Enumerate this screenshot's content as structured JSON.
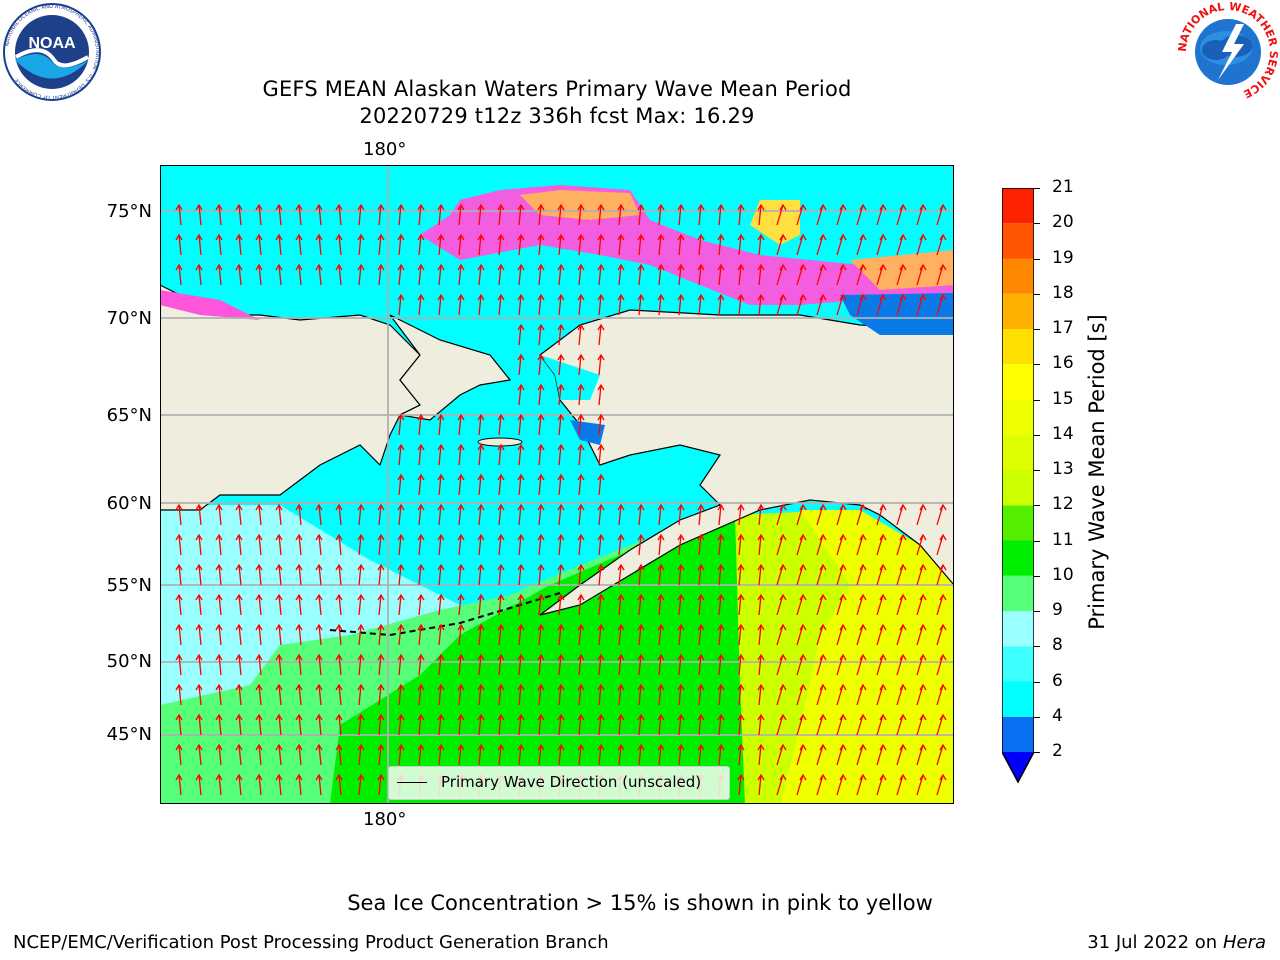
{
  "title": {
    "line1": "GEFS MEAN Alaskan Waters Primary Wave Mean Period",
    "line2": "20220729 t12z 336h fcst   Max: 16.29"
  },
  "map": {
    "lon_label_top": "180°",
    "lon_label_bottom": "180°",
    "lat_labels": [
      "75°N",
      "70°N",
      "65°N",
      "60°N",
      "55°N",
      "50°N",
      "45°N"
    ],
    "ocean_colors": {
      "cyan": "#00FFFF",
      "light_cyan": "#99FFFF",
      "green_light": "#55FF77",
      "green": "#00EE00",
      "yellow_green": "#CCFF00",
      "yellow": "#FFFF00",
      "blue": "#0A7AE8",
      "land": "#EEEDDE",
      "arrow": "#FF0000",
      "ice_pink": "#FF55DD",
      "ice_orange": "#FFB060",
      "ice_yellow": "#FFE040"
    },
    "legend_label": "Primary Wave Direction (unscaled)"
  },
  "colorbar": {
    "label": "Primary Wave Mean Period [s]",
    "ticks": [
      "2",
      "4",
      "6",
      "8",
      "9",
      "10",
      "11",
      "12",
      "13",
      "14",
      "15",
      "16",
      "17",
      "18",
      "19",
      "20",
      "21"
    ],
    "colors": [
      "#0A6FF0",
      "#00FFFF",
      "#3DFFFF",
      "#99FFFF",
      "#55FF77",
      "#00EE00",
      "#55EE00",
      "#CCFF00",
      "#DDFF00",
      "#EEFF00",
      "#FFFF00",
      "#FFE000",
      "#FFB000",
      "#FF8800",
      "#FF5500",
      "#FF2200"
    ],
    "extend_color": "#0000FF"
  },
  "notes": {
    "sea_ice": "Sea Ice Concentration > 15% is shown in pink to yellow"
  },
  "footer": {
    "left": "NCEP/EMC/Verification Post Processing Product Generation Branch",
    "right_date": "31 Jul 2022 on ",
    "right_machine": "Hera"
  },
  "logos": {
    "noaa_text": "NOAA",
    "noaa_ring": "NATIONAL OCEANIC AND ATMOSPHERIC ADMINISTRATION · U.S. DEPARTMENT OF COMMERCE",
    "nws_ring": "NATIONAL WEATHER SERVICE"
  }
}
